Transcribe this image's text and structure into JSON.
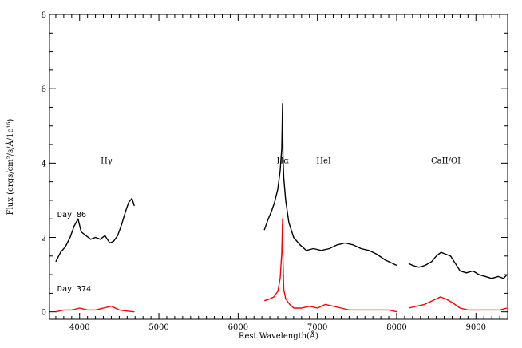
{
  "chart_data": {
    "type": "line",
    "title": "",
    "xlabel": "Rest Wavelength(Å)",
    "ylabel": "Flux (ergs/cm²/s/Å/1e¹⁶)",
    "xlim": [
      3620,
      9400
    ],
    "ylim": [
      -0.2,
      8.0
    ],
    "x_ticks": [
      4000,
      5000,
      6000,
      7000,
      8000,
      9000
    ],
    "y_ticks": [
      0,
      2,
      4,
      6,
      8
    ],
    "grid": false,
    "legend": "none",
    "annotations": [
      {
        "text": "Hγ",
        "x": 4340,
        "y": 4.0
      },
      {
        "text": "Hα",
        "x": 6563,
        "y": 4.0
      },
      {
        "text": "HeI",
        "x": 7080,
        "y": 4.0
      },
      {
        "text": "CaII/OI",
        "x": 8620,
        "y": 4.0
      }
    ],
    "series": [
      {
        "name": "Day 86",
        "color": "#000000",
        "label_pos": {
          "x": 3720,
          "y": 2.55
        },
        "segments": [
          {
            "x": [
              3700,
              3760,
              3820,
              3880,
              3930,
              3980,
              4020,
              4080,
              4140,
              4200,
              4260,
              4320,
              4380,
              4430,
              4480,
              4530,
              4580,
              4620,
              4660,
              4690
            ],
            "y": [
              1.35,
              1.6,
              1.75,
              2.0,
              2.3,
              2.5,
              2.15,
              2.05,
              1.95,
              2.0,
              1.95,
              2.05,
              1.85,
              1.9,
              2.05,
              2.35,
              2.7,
              2.95,
              3.05,
              2.85
            ]
          },
          {
            "x": [
              6330,
              6380,
              6420,
              6460,
              6500,
              6530,
              6550,
              6560,
              6565,
              6575,
              6600,
              6640,
              6700,
              6780,
              6860,
              6950,
              7050,
              7150,
              7250,
              7350,
              7450,
              7550,
              7650,
              7750,
              7850,
              7950,
              8000
            ],
            "y": [
              2.2,
              2.5,
              2.7,
              2.95,
              3.3,
              3.8,
              4.4,
              5.6,
              4.2,
              3.6,
              3.0,
              2.4,
              2.0,
              1.8,
              1.65,
              1.7,
              1.65,
              1.7,
              1.8,
              1.85,
              1.8,
              1.7,
              1.65,
              1.55,
              1.4,
              1.3,
              1.25
            ]
          },
          {
            "x": [
              8150,
              8200,
              8280,
              8360,
              8440,
              8500,
              8560,
              8620,
              8680,
              8740,
              8800,
              8880,
              8960,
              9040,
              9120,
              9200,
              9280,
              9350,
              9390
            ],
            "y": [
              1.3,
              1.25,
              1.2,
              1.25,
              1.35,
              1.5,
              1.6,
              1.55,
              1.5,
              1.3,
              1.1,
              1.05,
              1.1,
              1.0,
              0.95,
              0.9,
              0.95,
              0.9,
              1.0
            ]
          }
        ]
      },
      {
        "name": "Day 374",
        "color": "#ff0000",
        "label_pos": {
          "x": 3720,
          "y": 0.55
        },
        "segments": [
          {
            "x": [
              3700,
              3800,
              3900,
              4000,
              4100,
              4200,
              4300,
              4400,
              4500,
              4600,
              4690
            ],
            "y": [
              0.0,
              0.05,
              0.05,
              0.1,
              0.05,
              0.05,
              0.1,
              0.15,
              0.05,
              0.02,
              0.0
            ]
          },
          {
            "x": [
              6330,
              6400,
              6450,
              6500,
              6530,
              6550,
              6560,
              6565,
              6575,
              6600,
              6650,
              6700,
              6800,
              6900,
              7000,
              7100,
              7200,
              7300,
              7400,
              7500,
              7600,
              7700,
              7800,
              7900,
              8000
            ],
            "y": [
              0.3,
              0.35,
              0.4,
              0.55,
              0.9,
              1.6,
              2.5,
              1.4,
              0.6,
              0.35,
              0.2,
              0.1,
              0.1,
              0.15,
              0.1,
              0.2,
              0.15,
              0.1,
              0.05,
              0.05,
              0.05,
              0.05,
              0.05,
              0.05,
              0.0
            ]
          },
          {
            "x": [
              8150,
              8250,
              8350,
              8450,
              8550,
              8620,
              8700,
              8800,
              8900,
              9000,
              9100,
              9200,
              9300,
              9390
            ],
            "y": [
              0.1,
              0.15,
              0.2,
              0.3,
              0.4,
              0.35,
              0.25,
              0.1,
              0.05,
              0.05,
              0.05,
              0.05,
              0.05,
              0.1
            ]
          }
        ]
      }
    ]
  }
}
